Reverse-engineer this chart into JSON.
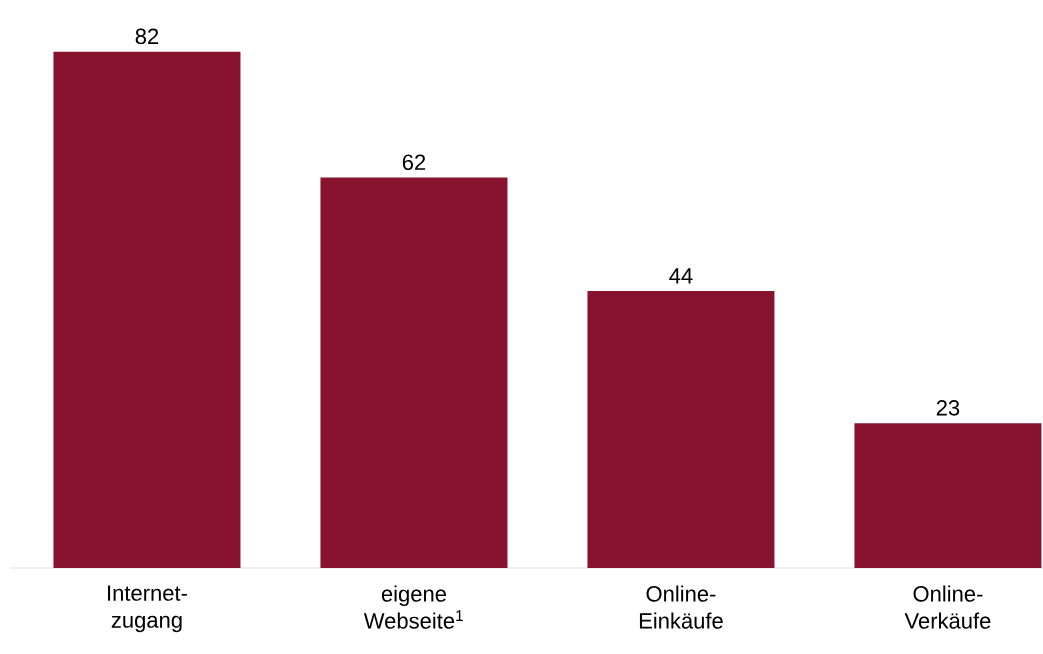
{
  "chart_data": {
    "type": "bar",
    "categories": [
      "Internet-zugang",
      "eigene Webseite$^{1}$",
      "Online-Einkäufe",
      "Online-Verkäufe"
    ],
    "values": [
      82,
      62,
      44,
      23
    ],
    "color": "#87132f",
    "data_labels": true
  }
}
